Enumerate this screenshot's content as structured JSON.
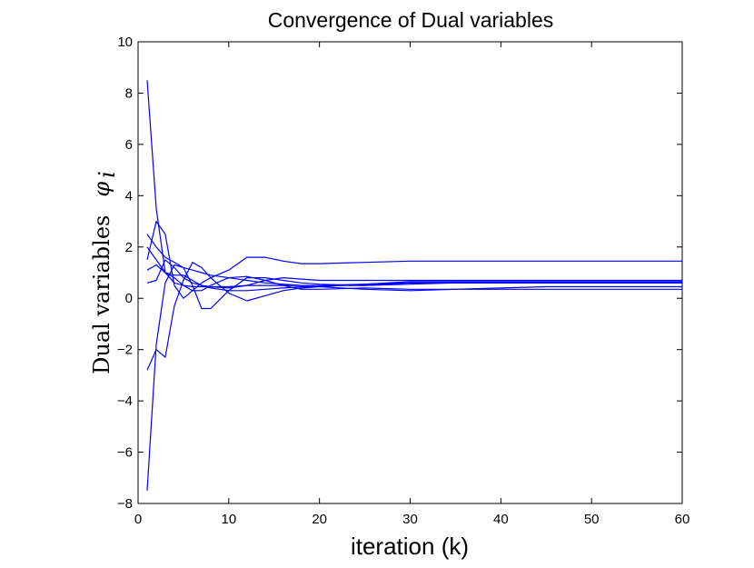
{
  "chart_data": {
    "type": "line",
    "title": "Convergence of Dual variables",
    "xlabel": "iteration (k)",
    "ylabel": "Dual variables",
    "ylabel_symbol": "φ",
    "ylabel_subscript": "i",
    "xlim": [
      0,
      60
    ],
    "ylim": [
      -8,
      10
    ],
    "xticks": [
      0,
      10,
      20,
      30,
      40,
      50,
      60
    ],
    "yticks": [
      -8,
      -6,
      -4,
      -2,
      0,
      2,
      4,
      6,
      8,
      10
    ],
    "ytick_labels": [
      "−8",
      "−6",
      "−4",
      "−2",
      "0",
      "2",
      "4",
      "6",
      "8",
      "10"
    ],
    "grid": false,
    "line_color": "#0000ff",
    "series": [
      {
        "x": [
          1,
          2,
          3,
          4,
          5,
          6,
          7,
          8,
          10,
          12,
          14,
          16,
          18,
          20,
          25,
          30,
          35,
          40,
          45,
          50,
          55,
          60
        ],
        "values": [
          8.5,
          3.5,
          1.0,
          0.6,
          0.5,
          0.45,
          0.45,
          0.45,
          0.45,
          0.5,
          0.5,
          0.5,
          0.5,
          0.5,
          0.55,
          0.6,
          0.6,
          0.6,
          0.6,
          0.6,
          0.6,
          0.6
        ]
      },
      {
        "x": [
          1,
          2,
          3,
          4,
          5,
          6,
          7,
          8,
          10,
          12,
          14,
          16,
          18,
          20,
          25,
          30,
          35,
          40,
          45,
          50,
          55,
          60
        ],
        "values": [
          -7.5,
          -1.8,
          0.6,
          1.3,
          1.2,
          1.1,
          1.0,
          0.9,
          0.8,
          0.7,
          0.6,
          0.55,
          0.5,
          0.5,
          0.5,
          0.6,
          0.6,
          0.6,
          0.6,
          0.6,
          0.6,
          0.6
        ]
      },
      {
        "x": [
          1,
          2,
          3,
          4,
          5,
          6,
          7,
          8,
          10,
          12,
          14,
          16,
          18,
          20,
          25,
          30,
          35,
          40,
          45,
          50,
          55,
          60
        ],
        "values": [
          1.5,
          3.0,
          2.5,
          0.5,
          0.0,
          0.3,
          0.6,
          0.8,
          1.1,
          1.6,
          1.6,
          1.45,
          1.35,
          1.35,
          1.4,
          1.45,
          1.45,
          1.45,
          1.45,
          1.45,
          1.45,
          1.45
        ]
      },
      {
        "x": [
          1,
          2,
          3,
          4,
          5,
          6,
          7,
          8,
          10,
          12,
          14,
          16,
          18,
          20,
          25,
          30,
          35,
          40,
          45,
          50,
          55,
          60
        ],
        "values": [
          -2.8,
          -2.0,
          -2.3,
          -0.3,
          0.7,
          1.4,
          1.2,
          0.8,
          0.2,
          -0.1,
          0.1,
          0.3,
          0.4,
          0.45,
          0.55,
          0.65,
          0.65,
          0.65,
          0.65,
          0.65,
          0.65,
          0.65
        ]
      },
      {
        "x": [
          1,
          2,
          3,
          4,
          5,
          6,
          7,
          8,
          10,
          12,
          14,
          16,
          18,
          20,
          25,
          30,
          35,
          40,
          45,
          50,
          55,
          60
        ],
        "values": [
          2.5,
          2.0,
          1.6,
          1.4,
          1.2,
          0.5,
          -0.4,
          -0.4,
          0.3,
          0.8,
          0.8,
          0.7,
          0.6,
          0.55,
          0.5,
          0.55,
          0.6,
          0.6,
          0.6,
          0.6,
          0.6,
          0.6
        ]
      },
      {
        "x": [
          1,
          2,
          3,
          4,
          5,
          6,
          7,
          8,
          10,
          12,
          14,
          16,
          18,
          20,
          25,
          30,
          35,
          40,
          45,
          50,
          55,
          60
        ],
        "values": [
          1.1,
          1.3,
          1.0,
          0.8,
          0.5,
          0.3,
          0.3,
          0.5,
          0.8,
          0.85,
          0.7,
          0.5,
          0.35,
          0.35,
          0.4,
          0.35,
          0.35,
          0.35,
          0.35,
          0.35,
          0.35,
          0.35
        ]
      },
      {
        "x": [
          1,
          2,
          3,
          4,
          5,
          6,
          7,
          8,
          10,
          12,
          14,
          16,
          18,
          20,
          25,
          30,
          35,
          40,
          45,
          50,
          55,
          60
        ],
        "values": [
          0.6,
          0.7,
          1.5,
          1.2,
          0.8,
          0.6,
          0.5,
          0.45,
          0.4,
          0.5,
          0.7,
          0.8,
          0.75,
          0.7,
          0.7,
          0.7,
          0.7,
          0.7,
          0.7,
          0.7,
          0.7,
          0.7
        ]
      },
      {
        "x": [
          1,
          2,
          3,
          4,
          5,
          6,
          7,
          8,
          10,
          12,
          14,
          16,
          18,
          20,
          25,
          30,
          35,
          40,
          45,
          50,
          55,
          60
        ],
        "values": [
          2.0,
          1.5,
          1.0,
          0.9,
          0.9,
          0.7,
          0.5,
          0.4,
          0.3,
          0.3,
          0.35,
          0.4,
          0.45,
          0.45,
          0.35,
          0.3,
          0.35,
          0.4,
          0.45,
          0.45,
          0.45,
          0.45
        ]
      }
    ]
  }
}
